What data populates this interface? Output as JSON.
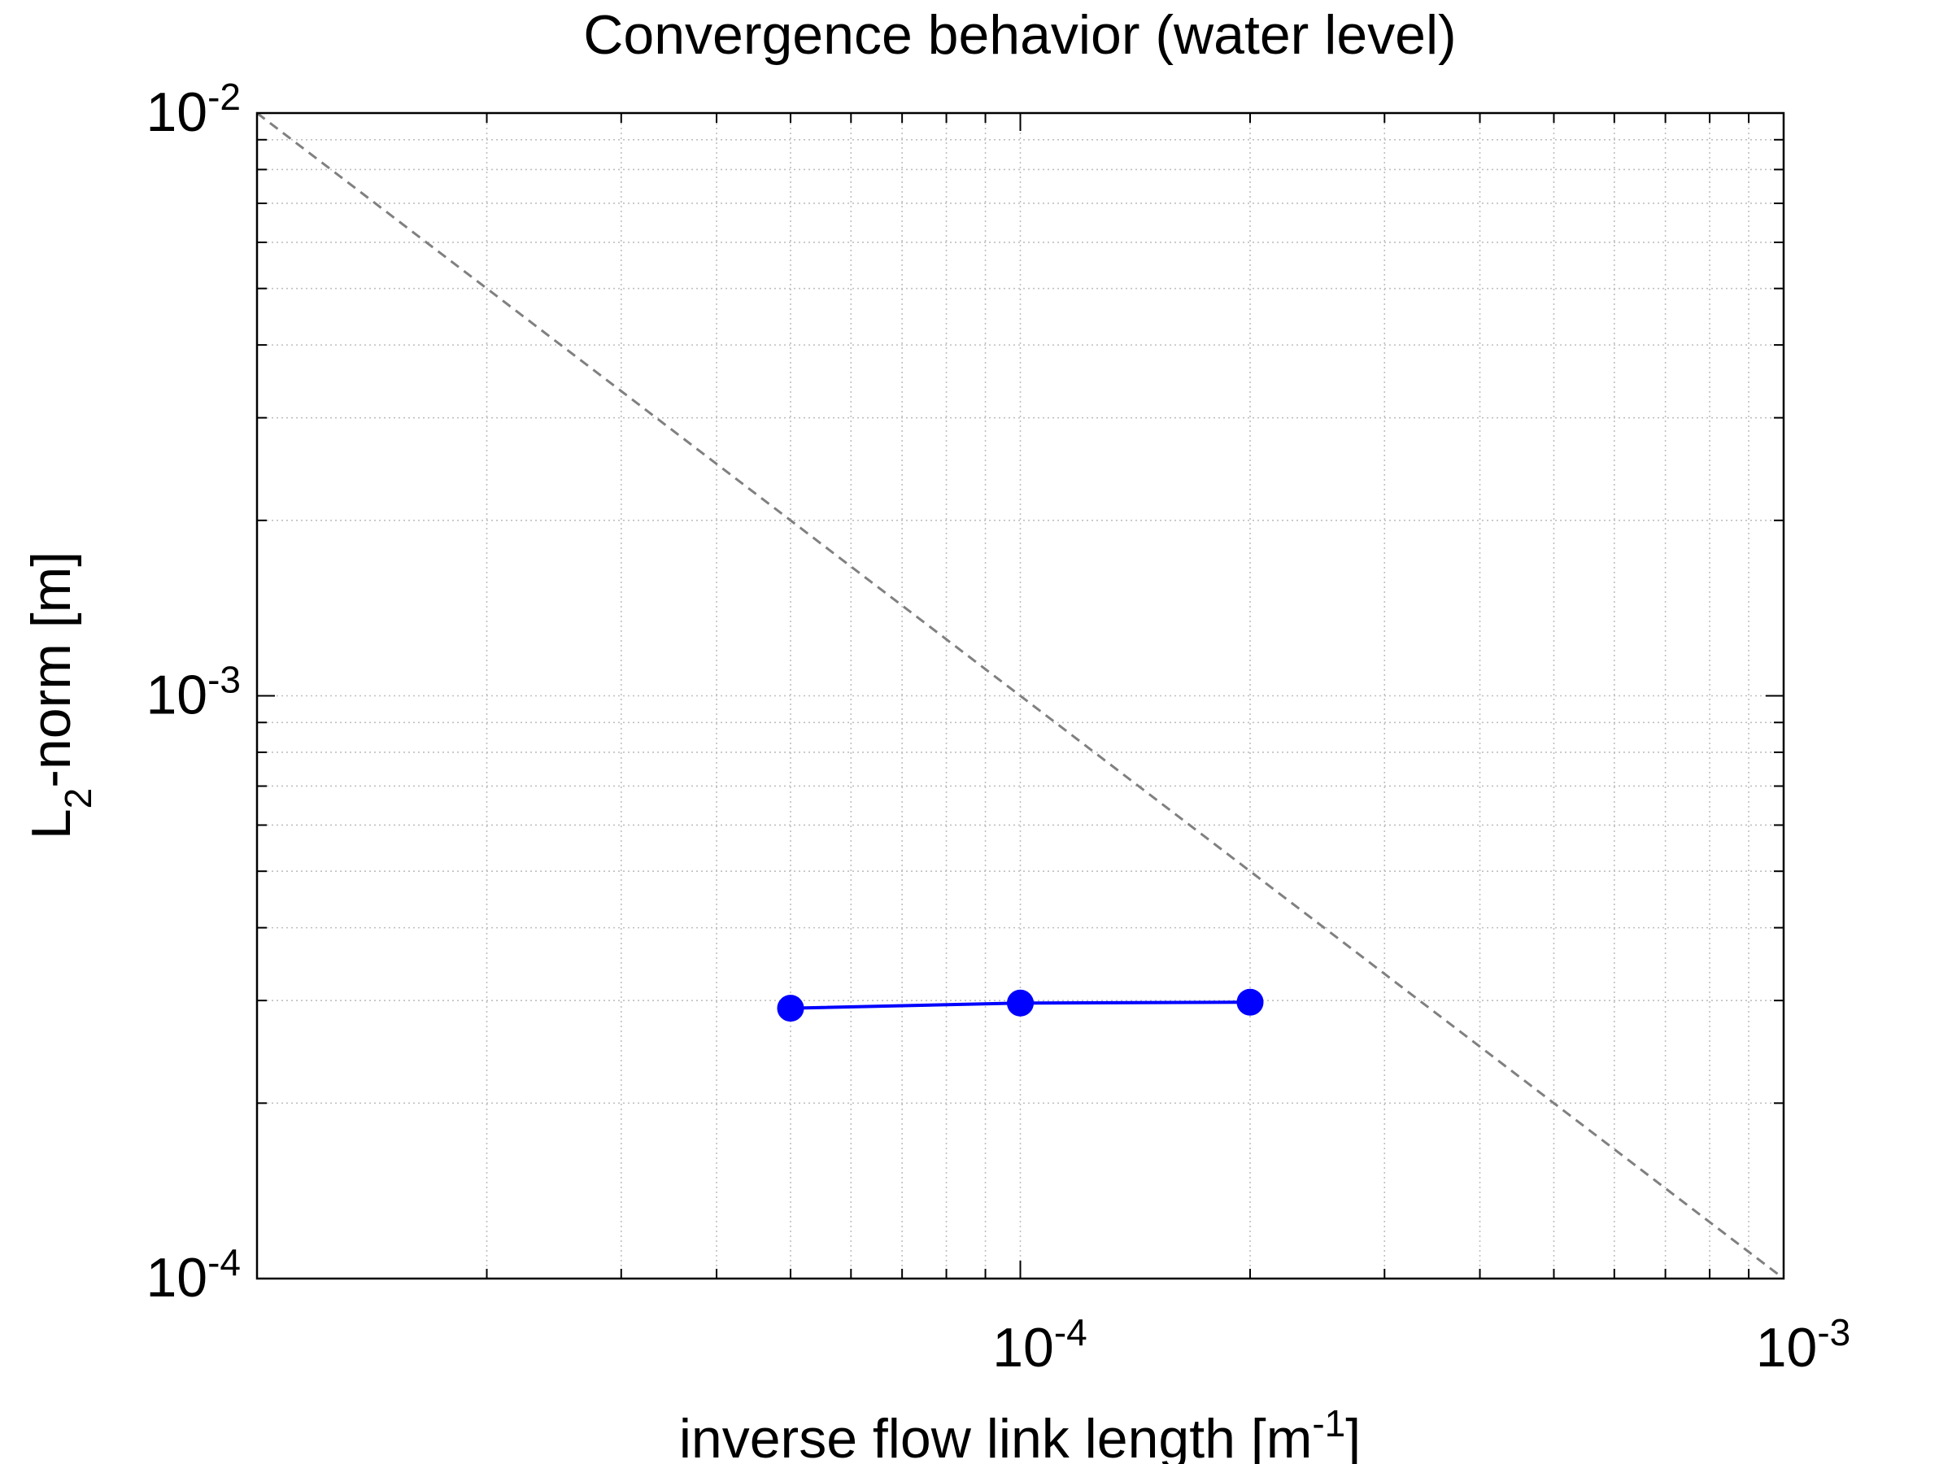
{
  "chart_data": {
    "type": "line",
    "title": "Convergence behavior (water level)",
    "xlabel": {
      "base": "inverse flow link length [m",
      "sup": "-1",
      "tail": "]"
    },
    "ylabel": {
      "base": "L",
      "sub": "2",
      "tail": "-norm [m]"
    },
    "xscale": "log",
    "yscale": "log",
    "xlim": [
      1e-05,
      0.001
    ],
    "ylim": [
      0.0001,
      0.01
    ],
    "grid": true,
    "x_ticks": [
      {
        "value": 0.0001,
        "base": "10",
        "exp": "-4"
      },
      {
        "value": 0.001,
        "base": "10",
        "exp": "-3"
      }
    ],
    "y_ticks": [
      {
        "value": 0.0001,
        "base": "10",
        "exp": "-4"
      },
      {
        "value": 0.001,
        "base": "10",
        "exp": "-3"
      },
      {
        "value": 0.01,
        "base": "10",
        "exp": "-2"
      }
    ],
    "series": [
      {
        "x": [
          5e-05,
          0.0001,
          0.0002
        ],
        "y": [
          0.000291,
          0.000297,
          0.000298
        ],
        "color": "#0000ff",
        "style": "solid",
        "marker": "circle"
      },
      {
        "x": [
          1e-05,
          0.001
        ],
        "y": [
          0.01,
          0.0001
        ],
        "color": "#808080",
        "style": "dashed",
        "marker": "none"
      }
    ]
  }
}
